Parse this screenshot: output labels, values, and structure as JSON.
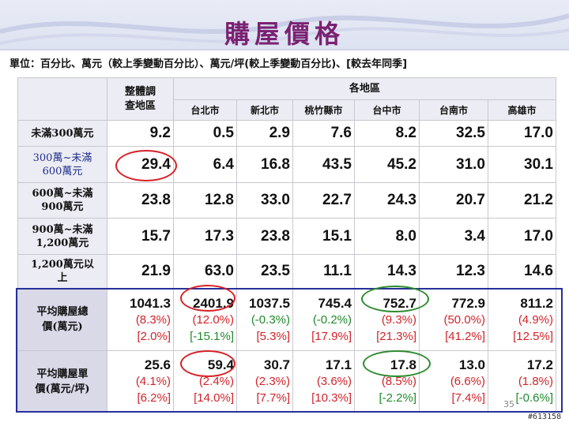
{
  "title": "購屋價格",
  "unit_note": "單位：百分比、萬元（較上季變動百分比）、萬元/坪(較上季變動百分比)、[較去年同季]",
  "header": {
    "overall": "整體調查地區",
    "overall_line1": "整體調",
    "overall_line2": "查地區",
    "regions": "各地區",
    "cities": [
      "台北市",
      "新北市",
      "桃竹縣市",
      "台中市",
      "台南市",
      "高雄市"
    ]
  },
  "rows": [
    {
      "label_line1": "未滿300萬元",
      "label_line2": "",
      "values": [
        "9.2",
        "0.5",
        "2.9",
        "7.6",
        "8.2",
        "32.5",
        "17.0"
      ]
    },
    {
      "label_line1": "300萬~未滿",
      "label_line2": "600萬元",
      "values": [
        "29.4",
        "6.4",
        "16.8",
        "43.5",
        "45.2",
        "31.0",
        "30.1"
      ]
    },
    {
      "label_line1": "600萬~未滿",
      "label_line2": "900萬元",
      "values": [
        "23.8",
        "12.8",
        "33.0",
        "22.7",
        "24.3",
        "20.7",
        "21.2"
      ]
    },
    {
      "label_line1": "900萬~未滿",
      "label_line2": "1,200萬元",
      "values": [
        "15.7",
        "17.3",
        "23.8",
        "15.1",
        "8.0",
        "3.4",
        "17.0"
      ]
    },
    {
      "label_line1": "1,200萬元以",
      "label_line2": "上",
      "values": [
        "21.9",
        "63.0",
        "23.5",
        "11.1",
        "14.3",
        "12.3",
        "14.6"
      ]
    }
  ],
  "avg_total": {
    "label_line1": "平均購屋總",
    "label_line2": "價(萬元)",
    "values": [
      "1041.3",
      "2401.9",
      "1037.5",
      "745.4",
      "752.7",
      "772.9",
      "811.2"
    ],
    "qoq": [
      "(8.3%)",
      "(12.0%)",
      "(-0.3%)",
      "(-0.2%)",
      "(9.3%)",
      "(50.0%)",
      "(4.9%)"
    ],
    "qoq_color": [
      "r",
      "r",
      "g",
      "g",
      "r",
      "r",
      "r"
    ],
    "yoy": [
      "[2.0%]",
      "[-15.1%]",
      "[5.3%]",
      "[17.9%]",
      "[21.3%]",
      "[41.2%]",
      "[12.5%]"
    ],
    "yoy_color": [
      "r",
      "g",
      "r",
      "r",
      "r",
      "r",
      "r"
    ]
  },
  "avg_unit": {
    "label_line1": "平均購屋單",
    "label_line2": "價(萬元/坪)",
    "values": [
      "25.6",
      "59.4",
      "30.7",
      "17.1",
      "17.8",
      "13.0",
      "17.2"
    ],
    "qoq": [
      "(4.1%)",
      "(2.4%)",
      "(2.3%)",
      "(3.6%)",
      "(8.5%)",
      "(6.6%)",
      "(1.8%)"
    ],
    "qoq_color": [
      "r",
      "r",
      "r",
      "r",
      "r",
      "r",
      "r"
    ],
    "yoy": [
      "[6.2%]",
      "[14.0%]",
      "[7.7%]",
      "[10.3%]",
      "[-2.2%]",
      "[7.4%]",
      "[-0.6%]"
    ],
    "yoy_color": [
      "r",
      "r",
      "r",
      "r",
      "g",
      "r",
      "g"
    ]
  },
  "colors": {
    "title": "#7a2272",
    "increase": "#d0242a",
    "decrease": "#1f8a2c",
    "frame": "#27309a"
  },
  "page_number": "35",
  "watermark": "#613158"
}
